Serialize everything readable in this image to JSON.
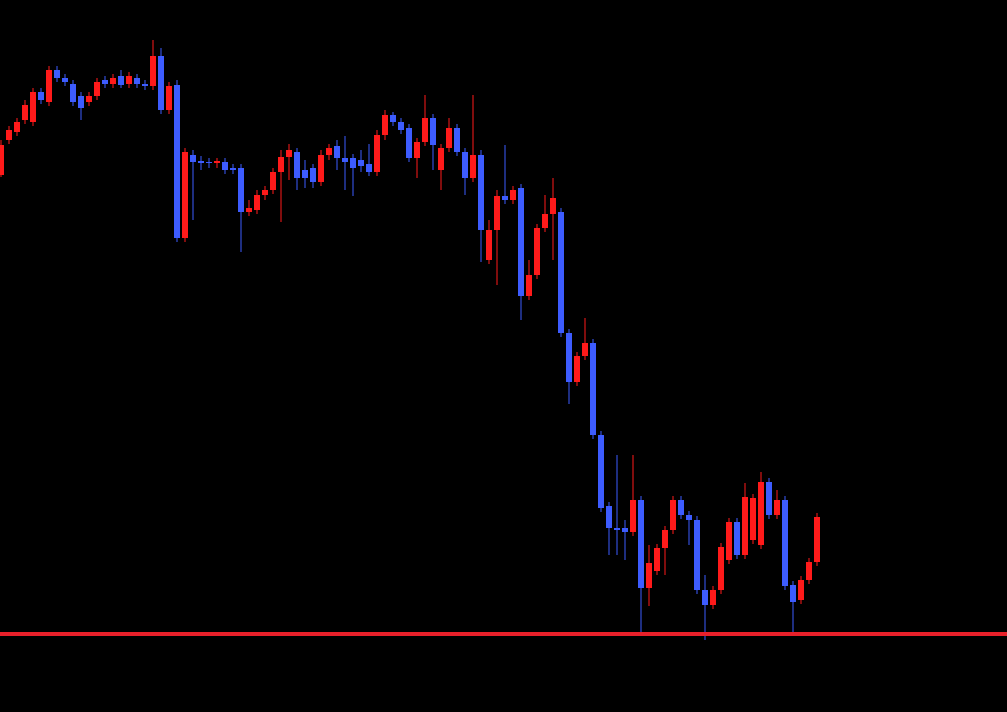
{
  "chart_data": {
    "type": "candlestick",
    "up_color": "#ff1a1a",
    "down_color": "#3d5cff",
    "background": "#000000",
    "ylim": [
      0,
      712
    ],
    "open": [
      537,
      572,
      580,
      592,
      590,
      620,
      610,
      642,
      634,
      628,
      616,
      610,
      616,
      632,
      628,
      636,
      628,
      634,
      628,
      626,
      656,
      602,
      627,
      474,
      557,
      551,
      550,
      549,
      550,
      544,
      544,
      500,
      502,
      517,
      522,
      540,
      555,
      560,
      542,
      544,
      530,
      557,
      566,
      554,
      554,
      552,
      548,
      540,
      577,
      597,
      590,
      584,
      554,
      570,
      594,
      542,
      564,
      584,
      560,
      534,
      557,
      452,
      482,
      516,
      512,
      524,
      416,
      437,
      484,
      498,
      500,
      379,
      330,
      356,
      369,
      277,
      206,
      184,
      184,
      180,
      212,
      124,
      141,
      164,
      182,
      212,
      197,
      192,
      122,
      107,
      122,
      152,
      190,
      157,
      172,
      167,
      230,
      197,
      212,
      127,
      112,
      132,
      150
    ],
    "close": [
      567,
      582,
      590,
      607,
      620,
      612,
      642,
      634,
      630,
      610,
      604,
      616,
      630,
      628,
      634,
      627,
      636,
      628,
      626,
      656,
      602,
      626,
      474,
      560,
      550,
      549,
      549,
      551,
      542,
      542,
      500,
      504,
      517,
      522,
      540,
      555,
      562,
      534,
      534,
      530,
      557,
      564,
      554,
      550,
      544,
      546,
      540,
      577,
      597,
      590,
      582,
      554,
      570,
      594,
      567,
      564,
      584,
      560,
      534,
      557,
      482,
      482,
      516,
      512,
      522,
      416,
      437,
      484,
      498,
      514,
      379,
      330,
      356,
      369,
      277,
      204,
      184,
      182,
      180,
      212,
      124,
      149,
      164,
      182,
      212,
      197,
      192,
      122,
      107,
      122,
      165,
      190,
      157,
      215,
      214,
      230,
      197,
      212,
      126,
      110,
      132,
      150,
      195
    ],
    "high": [
      572,
      586,
      594,
      612,
      624,
      624,
      646,
      646,
      638,
      632,
      620,
      620,
      634,
      636,
      638,
      642,
      640,
      638,
      632,
      672,
      664,
      630,
      632,
      564,
      562,
      556,
      554,
      554,
      554,
      548,
      548,
      512,
      522,
      526,
      544,
      562,
      568,
      564,
      552,
      548,
      562,
      568,
      572,
      576,
      558,
      562,
      568,
      582,
      602,
      600,
      594,
      588,
      574,
      617,
      598,
      568,
      594,
      588,
      564,
      617,
      562,
      492,
      522,
      567,
      526,
      528,
      452,
      488,
      517,
      534,
      504,
      383,
      360,
      394,
      373,
      281,
      210,
      257,
      192,
      257,
      216,
      167,
      168,
      186,
      216,
      216,
      201,
      196,
      137,
      126,
      169,
      194,
      194,
      229,
      218,
      240,
      234,
      222,
      216,
      131,
      136,
      154,
      199
    ],
    "low": [
      535,
      568,
      576,
      588,
      586,
      608,
      606,
      630,
      626,
      606,
      592,
      606,
      612,
      624,
      624,
      624,
      624,
      624,
      622,
      622,
      598,
      598,
      470,
      470,
      492,
      542,
      544,
      544,
      538,
      538,
      460,
      496,
      498,
      512,
      518,
      490,
      532,
      522,
      524,
      524,
      526,
      552,
      542,
      522,
      516,
      540,
      536,
      536,
      572,
      586,
      578,
      550,
      534,
      566,
      542,
      522,
      560,
      556,
      517,
      530,
      450,
      448,
      427,
      508,
      508,
      392,
      412,
      433,
      480,
      452,
      375,
      308,
      326,
      352,
      273,
      200,
      157,
      157,
      152,
      176,
      80,
      106,
      137,
      137,
      178,
      193,
      167,
      118,
      72,
      103,
      118,
      148,
      153,
      153,
      168,
      163,
      193,
      193,
      122,
      80,
      108,
      128,
      146
    ],
    "hline": {
      "value": 78,
      "color": "#e8202a"
    }
  }
}
